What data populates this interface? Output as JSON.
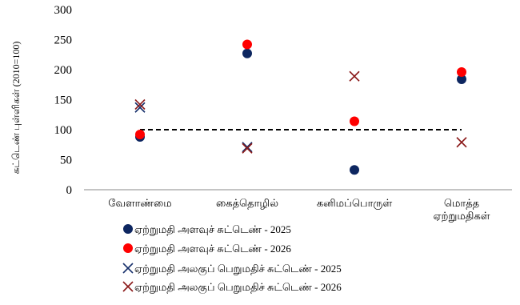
{
  "chart_data": {
    "type": "scatter",
    "title": "",
    "xlabel": "",
    "ylabel": "சுட்டெண் புள்ளிகள் (2010=100)",
    "ylim": [
      0,
      300
    ],
    "yticks": [
      0,
      50,
      100,
      150,
      200,
      250,
      300
    ],
    "categories": [
      "வேளாண்மை",
      "கைத்தொழில்",
      "கனிமப்பொருள்",
      "மொத்த ஏற்றுமதிகள்"
    ],
    "reference_line": 100,
    "grid": false,
    "legend_position": "bottom",
    "series": [
      {
        "name": "ஏற்றுமதி அளவுச் சுட்டெண் - 2025",
        "marker": "circle",
        "color": "#0d2660",
        "values": [
          88,
          227,
          33,
          184
        ]
      },
      {
        "name": "ஏற்றுமதி அளவுச் சுட்டெண் - 2026",
        "marker": "circle",
        "color": "#ff0000",
        "values": [
          92,
          242,
          114,
          196
        ]
      },
      {
        "name": "ஏற்றுமதி அலகுப் பெறுமதிச் சுட்டெண் - 2025",
        "marker": "x",
        "color": "#17306b",
        "values": [
          137,
          71,
          null,
          null
        ]
      },
      {
        "name": "ஏற்றுமதி அலகுப் பெறுமதிச் சுட்டெண் - 2026",
        "marker": "x",
        "color": "#8b1a1a",
        "values": [
          142,
          69,
          189,
          79
        ]
      }
    ]
  }
}
